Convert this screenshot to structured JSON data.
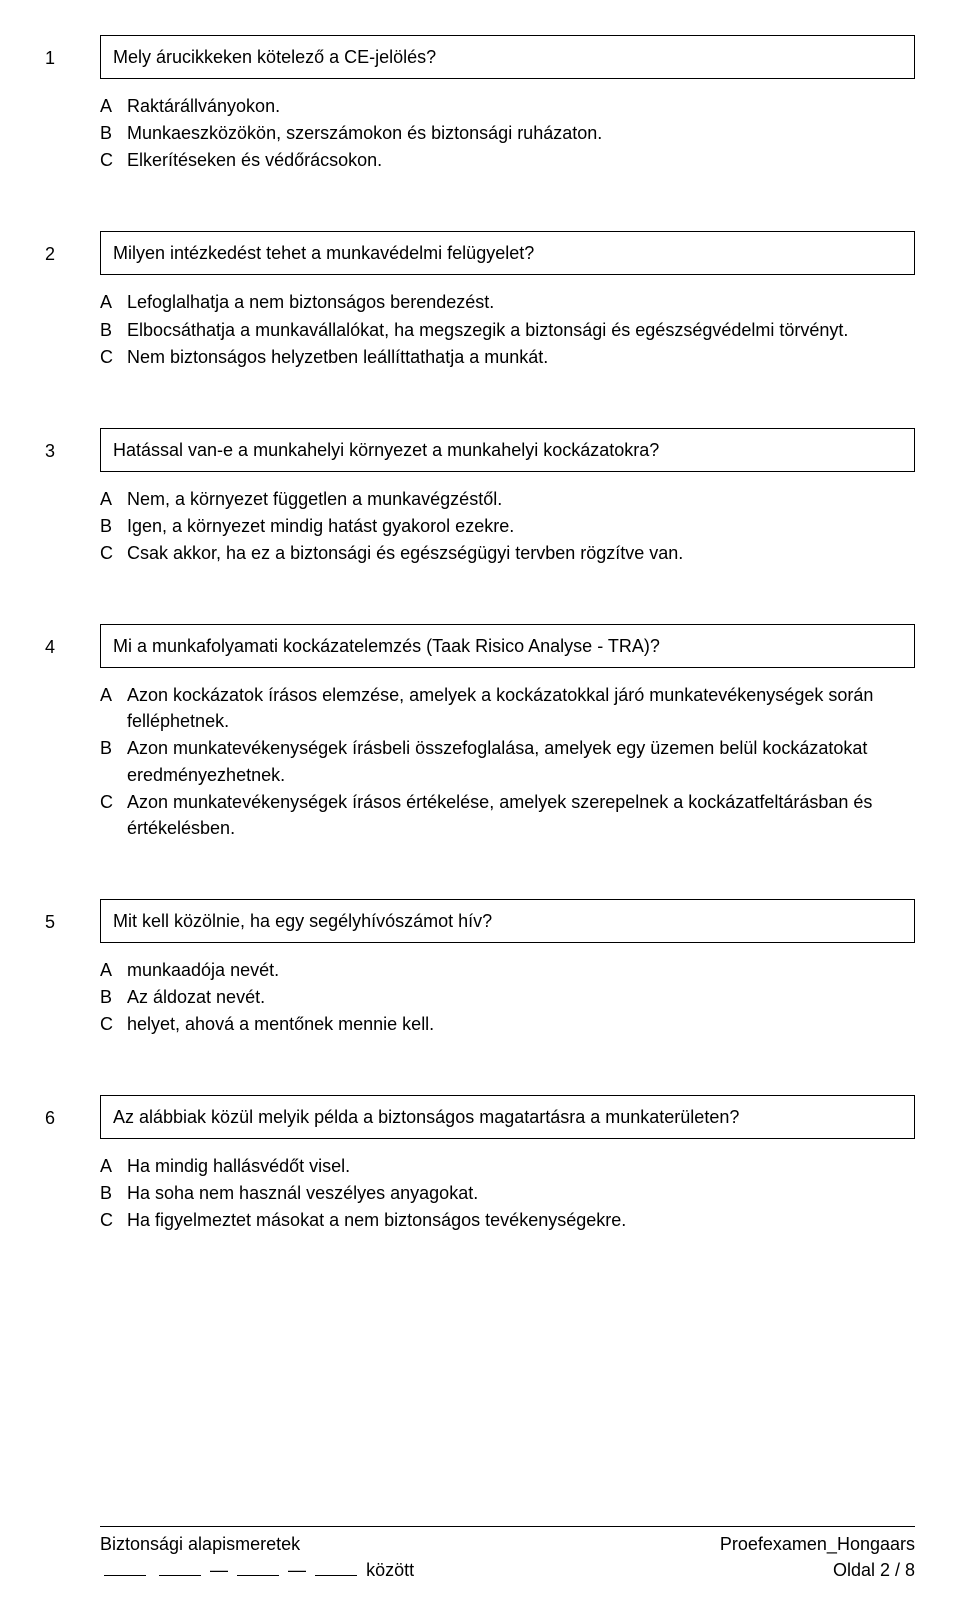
{
  "questions": [
    {
      "number": "1",
      "text": "Mely árucikkeken kötelező a CE-jelölés?",
      "options": [
        {
          "letter": "A",
          "text": "Raktárállványokon."
        },
        {
          "letter": "B",
          "text": "Munkaeszközökön, szerszámokon és biztonsági ruházaton."
        },
        {
          "letter": "C",
          "text": "Elkerítéseken és védőrácsokon."
        }
      ]
    },
    {
      "number": "2",
      "text": "Milyen intézkedést tehet a munkavédelmi felügyelet?",
      "options": [
        {
          "letter": "A",
          "text": "Lefoglalhatja a nem biztonságos berendezést."
        },
        {
          "letter": "B",
          "text": "Elbocsáthatja a munkavállalókat, ha megszegik a biztonsági és egészségvédelmi törvényt."
        },
        {
          "letter": "C",
          "text": "Nem biztonságos helyzetben leállíttathatja a munkát."
        }
      ]
    },
    {
      "number": "3",
      "text": "Hatással van-e a munkahelyi környezet a munkahelyi kockázatokra?",
      "options": [
        {
          "letter": "A",
          "text": "Nem, a környezet független a munkavégzéstől."
        },
        {
          "letter": "B",
          "text": "Igen, a környezet mindig hatást gyakorol ezekre."
        },
        {
          "letter": "C",
          "text": "Csak akkor, ha ez a biztonsági és egészségügyi tervben rögzítve van."
        }
      ]
    },
    {
      "number": "4",
      "text": "Mi a munkafolyamati kockázatelemzés (Taak Risico Analyse - TRA)?",
      "options": [
        {
          "letter": "A",
          "text": "Azon kockázatok írásos elemzése, amelyek a kockázatokkal járó munkatevékenységek során felléphetnek."
        },
        {
          "letter": "B",
          "text": "Azon munkatevékenységek írásbeli összefoglalása, amelyek egy üzemen belül kockázatokat eredményezhetnek."
        },
        {
          "letter": "C",
          "text": "Azon munkatevékenységek írásos értékelése, amelyek szerepelnek a kockázatfeltárásban és értékelésben."
        }
      ]
    },
    {
      "number": "5",
      "text": "Mit kell közölnie, ha egy segélyhívószámot hív?",
      "options": [
        {
          "letter": "A",
          "text": "munkaadója nevét."
        },
        {
          "letter": "B",
          "text": "Az áldozat nevét."
        },
        {
          "letter": "C",
          "text": "helyet, ahová a mentőnek mennie kell."
        }
      ]
    },
    {
      "number": "6",
      "text": "Az alábbiak közül melyik példa a biztonságos magatartásra a munkaterületen?",
      "options": [
        {
          "letter": "A",
          "text": "Ha mindig hallásvédőt visel."
        },
        {
          "letter": "B",
          "text": "Ha soha nem használ veszélyes anyagokat."
        },
        {
          "letter": "C",
          "text": "Ha figyelmeztet másokat a nem biztonságos tevékenységekre."
        }
      ]
    }
  ],
  "footer": {
    "left_top": "Biztonsági alapismeretek",
    "left_bottom_word": "között",
    "right_top": "Proefexamen_Hongaars",
    "right_bottom": "Oldal 2 / 8"
  }
}
